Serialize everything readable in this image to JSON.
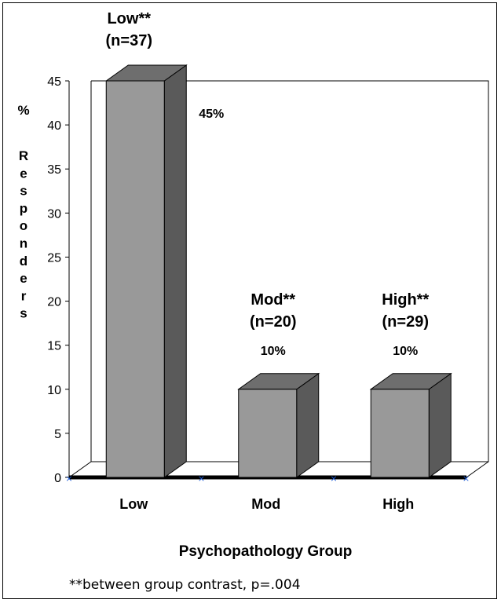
{
  "chart_data": {
    "type": "bar",
    "style": "3d",
    "categories": [
      "Low",
      "Mod",
      "High"
    ],
    "values": [
      45,
      10,
      10
    ],
    "value_labels": [
      "45%",
      "10%",
      "10%"
    ],
    "bar_annotations": [
      {
        "name": "Low**",
        "n": "(n=37)"
      },
      {
        "name": "Mod**",
        "n": "(n=20)"
      },
      {
        "name": "High**",
        "n": "(n=29)"
      }
    ],
    "xlabel": "Psychopathology Group",
    "ylabel_chars": [
      "%",
      "R",
      "e",
      "s",
      "p",
      "o",
      "n",
      "d",
      "e",
      "r",
      "s"
    ],
    "ylim": [
      0,
      45
    ],
    "yticks": [
      0,
      5,
      10,
      15,
      20,
      25,
      30,
      35,
      40,
      45
    ],
    "grid": false,
    "footnote_marker": "**",
    "footnote": "between group contrast, p=.004",
    "colors": {
      "bar_front": "#999999",
      "bar_top": "#6e6e6e",
      "bar_side": "#5a5a5a",
      "axis": "#000000",
      "marker": "#1a5ad8"
    }
  }
}
